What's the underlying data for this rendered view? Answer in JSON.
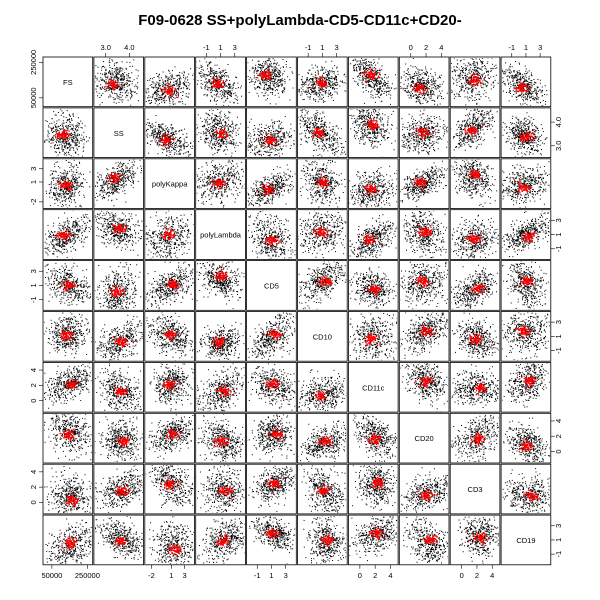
{
  "chart_data": {
    "type": "scatter",
    "title": "F09-0628 SS+polyLambda-CD5-CD11c+CD20-",
    "variables": [
      "FS",
      "SS",
      "polyKappa",
      "polyLambda",
      "CD5",
      "CD10",
      "CD11c",
      "CD20",
      "CD3",
      "CD19"
    ],
    "axes": [
      {
        "name": "FS",
        "ticks": [
          50000,
          250000
        ],
        "tick_labels": [
          "50000",
          "250000"
        ],
        "range": [
          0,
          280000
        ]
      },
      {
        "name": "SS",
        "ticks": [
          3.0,
          4.0
        ],
        "tick_labels": [
          "3.0",
          "4.0"
        ],
        "range": [
          2.5,
          4.6
        ]
      },
      {
        "name": "polyKappa",
        "ticks": [
          -2,
          1,
          3
        ],
        "tick_labels": [
          "-2",
          "1",
          "3"
        ],
        "range": [
          -3,
          4.5
        ]
      },
      {
        "name": "polyLambda",
        "ticks": [
          -1,
          1,
          3
        ],
        "tick_labels": [
          "-1",
          "1",
          "3"
        ],
        "range": [
          -2.5,
          4.5
        ]
      },
      {
        "name": "CD5",
        "ticks": [
          -1,
          1,
          3
        ],
        "tick_labels": [
          "-1",
          "1",
          "3"
        ],
        "range": [
          -2.5,
          4.5
        ]
      },
      {
        "name": "CD10",
        "ticks": [
          -1,
          1,
          3
        ],
        "tick_labels": [
          "-1",
          "1",
          "3"
        ],
        "range": [
          -2.5,
          4.5
        ]
      },
      {
        "name": "CD11c",
        "ticks": [
          0,
          2,
          4
        ],
        "tick_labels": [
          "0",
          "2",
          "4"
        ],
        "range": [
          -1.5,
          5
        ]
      },
      {
        "name": "CD20",
        "ticks": [
          0,
          2,
          4
        ],
        "tick_labels": [
          "0",
          "2",
          "4"
        ],
        "range": [
          -1.5,
          5
        ]
      },
      {
        "name": "CD3",
        "ticks": [
          0,
          2,
          4
        ],
        "tick_labels": [
          "0",
          "2",
          "4"
        ],
        "range": [
          -1.5,
          5
        ]
      },
      {
        "name": "CD19",
        "ticks": [
          -1,
          1,
          3
        ],
        "tick_labels": [
          "-1",
          "1",
          "3"
        ],
        "range": [
          -2.5,
          4.5
        ]
      }
    ],
    "series": [
      {
        "color": "#000000"
      },
      {
        "color": "#ff0000"
      }
    ],
    "grid": false,
    "legend": "none"
  }
}
